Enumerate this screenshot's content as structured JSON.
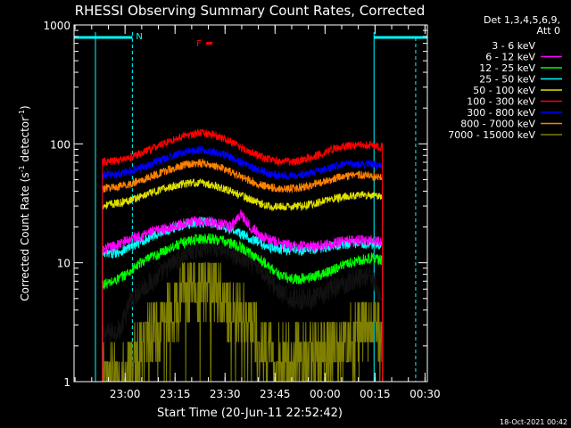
{
  "chart_data": {
    "type": "line",
    "title": "RHESSI Observing Summary Count Rates, Corrected",
    "xlabel": "Start Time (20-Jun-11 22:52:42)",
    "ylabel_main": "Corrected Count Rate (s",
    "ylabel_sup1": "-1",
    "ylabel_mid": " detector",
    "ylabel_sup2": "-1",
    "ylabel_end": ")",
    "yscale": "log",
    "ylim": [
      1,
      1000
    ],
    "y_ticks": [
      {
        "value": 1,
        "label": "1"
      },
      {
        "value": 10,
        "label": "10"
      },
      {
        "value": 100,
        "label": "100"
      },
      {
        "value": 1000,
        "label": "1000"
      }
    ],
    "x_ticks": [
      "23:00",
      "23:15",
      "23:30",
      "23:45",
      "00:00",
      "00:15",
      "00:30"
    ],
    "x_tick_minutes": [
      7.3,
      22.3,
      37.3,
      52.3,
      67.3,
      82.3,
      97.3
    ],
    "xlim_minutes": [
      -8,
      98
    ],
    "data_span_minutes": [
      0.5,
      84.5
    ],
    "legend_header": [
      "Det 1,3,4,5,6,9,",
      "Att 0"
    ],
    "series": [
      {
        "name": "3 - 6 keV",
        "color": "#000000",
        "x": [
          0,
          3,
          6,
          9,
          12,
          15,
          18,
          21,
          24,
          27,
          30,
          33,
          36,
          39,
          42,
          45,
          48,
          51,
          54,
          57,
          60,
          63,
          66,
          69,
          72,
          75,
          78,
          81,
          84
        ],
        "y": [
          2.5,
          2.6,
          2.8,
          4.8,
          6.0,
          6.8,
          8.0,
          9.5,
          11,
          12.5,
          13.5,
          14,
          13.5,
          12,
          11,
          10,
          9,
          7,
          5.5,
          5.0,
          5.0,
          5.0,
          5.2,
          6.0,
          6.5,
          7.0,
          7.5,
          8.0,
          5.0
        ]
      },
      {
        "name": "6 - 12 keV",
        "color": "#ff00ff",
        "x": [
          0,
          3,
          6,
          9,
          12,
          15,
          18,
          21,
          24,
          27,
          30,
          33,
          36,
          39,
          42,
          45,
          48,
          51,
          54,
          57,
          60,
          63,
          66,
          69,
          72,
          75,
          78,
          81,
          84
        ],
        "y": [
          12.5,
          13.5,
          14.5,
          16,
          17,
          18,
          19,
          20,
          21,
          22,
          22.5,
          22,
          21,
          20,
          26,
          20,
          17,
          15.5,
          14.5,
          14,
          13.8,
          13.8,
          14,
          14.5,
          15,
          15.5,
          15.5,
          15.5,
          15
        ]
      },
      {
        "name": "12 - 25 keV",
        "color": "#00ff00",
        "x": [
          0,
          3,
          6,
          9,
          12,
          15,
          18,
          21,
          24,
          27,
          30,
          33,
          36,
          39,
          42,
          45,
          48,
          51,
          54,
          57,
          60,
          63,
          66,
          69,
          72,
          75,
          78,
          81,
          84
        ],
        "y": [
          6.5,
          6.8,
          7.5,
          8.5,
          10,
          11,
          12,
          13.5,
          14.5,
          15.5,
          16,
          16,
          15.5,
          14.5,
          13.5,
          12,
          10.5,
          9,
          7.8,
          7.3,
          7.3,
          7.5,
          8,
          8.5,
          9.5,
          10,
          10.5,
          11,
          10.5
        ]
      },
      {
        "name": "25 - 50 keV",
        "color": "#00ffff",
        "x": [
          0,
          3,
          6,
          9,
          12,
          15,
          18,
          21,
          24,
          27,
          30,
          33,
          36,
          39,
          42,
          45,
          48,
          51,
          54,
          57,
          60,
          63,
          66,
          69,
          72,
          75,
          78,
          81,
          84
        ],
        "y": [
          11.5,
          12,
          12.5,
          13.5,
          15,
          16.5,
          18,
          19.5,
          20.5,
          21.5,
          22,
          21.5,
          20.5,
          19,
          17.5,
          16,
          14.5,
          13.5,
          13,
          12.8,
          12.8,
          13,
          13.3,
          13.8,
          14.2,
          14.5,
          14.5,
          14.5,
          14
        ]
      },
      {
        "name": "50 - 100 keV",
        "color": "#e0e000",
        "x": [
          0,
          3,
          6,
          9,
          12,
          15,
          18,
          21,
          24,
          27,
          30,
          33,
          36,
          39,
          42,
          45,
          48,
          51,
          54,
          57,
          60,
          63,
          66,
          69,
          72,
          75,
          78,
          81,
          84
        ],
        "y": [
          30,
          31,
          32,
          34,
          36,
          38.5,
          41,
          43.5,
          45.5,
          47,
          47,
          45.5,
          43,
          40,
          37,
          34,
          31.5,
          30,
          29.5,
          29.5,
          30,
          31,
          32.5,
          34,
          35.5,
          36.5,
          37,
          37,
          36
        ]
      },
      {
        "name": "100 - 300 keV",
        "color": "#ff0000",
        "x": [
          0,
          3,
          6,
          9,
          12,
          15,
          18,
          21,
          24,
          27,
          30,
          33,
          36,
          39,
          42,
          45,
          48,
          51,
          54,
          57,
          60,
          63,
          66,
          69,
          72,
          75,
          78,
          81,
          84
        ],
        "y": [
          70,
          71,
          73,
          77,
          83,
          90,
          98,
          106,
          114,
          120,
          123,
          121,
          114,
          104,
          94,
          85,
          78,
          73,
          71,
          71,
          73,
          77,
          83,
          89,
          94,
          97,
          98,
          97,
          94
        ]
      },
      {
        "name": "300 - 800 keV",
        "color": "#0000ff",
        "x": [
          0,
          3,
          6,
          9,
          12,
          15,
          18,
          21,
          24,
          27,
          30,
          33,
          36,
          39,
          42,
          45,
          48,
          51,
          54,
          57,
          60,
          63,
          66,
          69,
          72,
          75,
          78,
          81,
          84
        ],
        "y": [
          54,
          55,
          56,
          59,
          63,
          68,
          73,
          78,
          83,
          87,
          89,
          87,
          83,
          77,
          70,
          64,
          59,
          56,
          54,
          54,
          55,
          57,
          60,
          63,
          66,
          68,
          68,
          67,
          65
        ]
      },
      {
        "name": "800 - 7000 keV",
        "color": "#ff8000",
        "x": [
          0,
          3,
          6,
          9,
          12,
          15,
          18,
          21,
          24,
          27,
          30,
          33,
          36,
          39,
          42,
          45,
          48,
          51,
          54,
          57,
          60,
          63,
          66,
          69,
          72,
          75,
          78,
          81,
          84
        ],
        "y": [
          42,
          43,
          44,
          46,
          49,
          53,
          57,
          61,
          65,
          68,
          69,
          67,
          63,
          58,
          53,
          49,
          45,
          43,
          42,
          42,
          43,
          45,
          47.5,
          50,
          52.5,
          54,
          55,
          54,
          53
        ]
      },
      {
        "name": "7000 - 15000 keV",
        "color": "#808000",
        "x": [
          0,
          3,
          6,
          9,
          12,
          15,
          18,
          21,
          24,
          27,
          30,
          33,
          36,
          39,
          42,
          45,
          48,
          51,
          54,
          57,
          60,
          63,
          66,
          69,
          72,
          75,
          78,
          81,
          84
        ],
        "y": [
          1,
          1,
          1,
          1.5,
          2,
          2.5,
          3,
          4,
          5,
          6,
          6.5,
          6,
          5,
          4,
          3.5,
          3,
          2,
          1.5,
          1.5,
          1.5,
          1.5,
          1.5,
          2,
          2,
          2,
          2.5,
          3,
          3,
          2.5
        ]
      }
    ],
    "annotations": {
      "n_label": "N",
      "f_label": "F",
      "night_windows_minutes": [
        [
          -8,
          9.5
        ],
        [
          82,
          98
        ]
      ],
      "n_marker_minute": 9.5,
      "f_marker_minute": 29.5,
      "night_end_minute": 94.5
    },
    "footer_date": "18-Oct-2021 00:42"
  },
  "colors": {
    "background": "#000000",
    "axes": "#ffffff",
    "night": "#00ffff",
    "flare": "#ff0000"
  }
}
